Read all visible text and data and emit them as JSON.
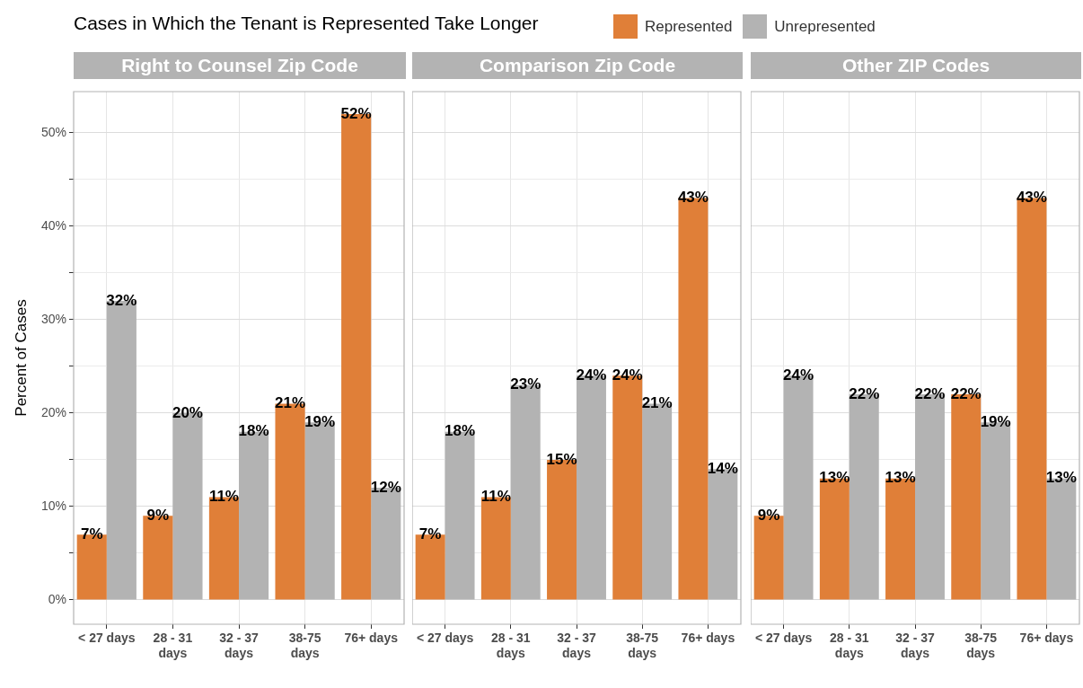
{
  "chart_data": [
    {
      "type": "bar",
      "title": "Cases in Which the Tenant is Represented Take Longer",
      "subtitle": "Right to Counsel Zip Code",
      "ylabel": "Percent of Cases",
      "legend": "top right",
      "grid": true,
      "categories": [
        "< 27 days",
        "28 - 31 days",
        "32 - 37 days",
        "38-75 days",
        "76+ days"
      ],
      "series": [
        {
          "name": "Represented",
          "color": "#e07f38",
          "values": [
            7,
            9,
            11,
            21,
            52
          ],
          "value_labels": [
            "7%",
            "9%",
            "11%",
            "21%",
            "52%"
          ]
        },
        {
          "name": "Unrepresented",
          "color": "#b3b3b3",
          "values": [
            32,
            20,
            18,
            19,
            12
          ],
          "value_labels": [
            "32%",
            "20%",
            "18%",
            "19%",
            "12%"
          ]
        }
      ],
      "ylim": [
        -2.6,
        54.4
      ],
      "yticks": [
        {
          "value": 0,
          "label": "0%"
        },
        {
          "value": 5,
          "label": null
        },
        {
          "value": 10,
          "label": "10%"
        },
        {
          "value": 15,
          "label": null
        },
        {
          "value": 20,
          "label": "20%"
        },
        {
          "value": 25,
          "label": null
        },
        {
          "value": 30,
          "label": "30%"
        },
        {
          "value": 35,
          "label": null
        },
        {
          "value": 40,
          "label": "40%"
        },
        {
          "value": 45,
          "label": null
        },
        {
          "value": 50,
          "label": "50%"
        }
      ]
    },
    {
      "type": "bar",
      "subtitle": "Comparison Zip Code",
      "grid": true,
      "tick_labels": "x",
      "categories": [
        "< 27 days",
        "28 - 31 days",
        "32 - 37 days",
        "38-75 days",
        "76+ days"
      ],
      "series": [
        {
          "color": "#e07f38",
          "values": [
            7,
            11,
            15,
            24,
            43
          ],
          "value_labels": [
            "7%",
            "11%",
            "15%",
            "24%",
            "43%"
          ]
        },
        {
          "color": "#b3b3b3",
          "values": [
            18,
            23,
            24,
            21,
            14
          ],
          "value_labels": [
            "18%",
            "23%",
            "24%",
            "21%",
            "14%"
          ]
        }
      ],
      "ylim": [
        -2.6,
        54.4
      ],
      "yticks": [
        0,
        5,
        10,
        15,
        20,
        25,
        30,
        35,
        40,
        45,
        50
      ]
    },
    {
      "type": "bar",
      "subtitle": "Other ZIP Codes",
      "grid": true,
      "tick_labels": "x",
      "categories": [
        "< 27 days",
        "28 - 31 days",
        "32 - 37 days",
        "38-75 days",
        "76+ days"
      ],
      "series": [
        {
          "color": "#e07f38",
          "values": [
            9,
            13,
            13,
            22,
            43
          ],
          "value_labels": [
            "9%",
            "13%",
            "13%",
            "22%",
            "43%"
          ]
        },
        {
          "color": "#b3b3b3",
          "values": [
            24,
            22,
            22,
            19,
            13
          ],
          "value_labels": [
            "24%",
            "22%",
            "22%",
            "19%",
            "13%"
          ]
        }
      ],
      "ylim": [
        -2.6,
        54.4
      ],
      "yticks": [
        0,
        5,
        10,
        15,
        20,
        25,
        30,
        35,
        40,
        45,
        50
      ]
    }
  ]
}
